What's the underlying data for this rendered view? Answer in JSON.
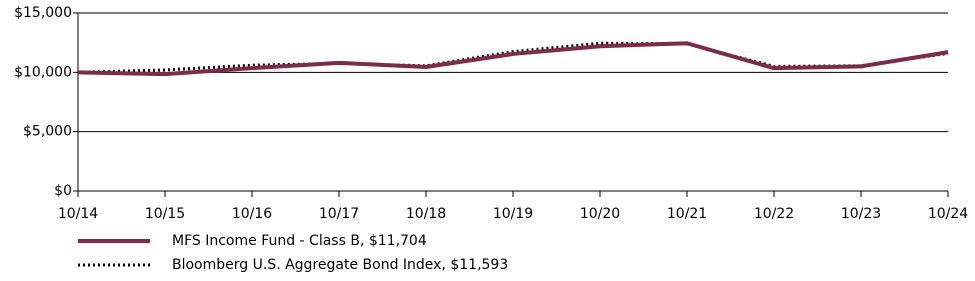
{
  "chart_data": {
    "type": "line",
    "categories": [
      "10/14",
      "10/15",
      "10/16",
      "10/17",
      "10/18",
      "10/19",
      "10/20",
      "10/21",
      "10/22",
      "10/23",
      "10/24"
    ],
    "series": [
      {
        "name": "MFS Income Fund - Class B, $11,704",
        "color": "#7d2c48",
        "style": "solid",
        "values": [
          10000,
          9850,
          10350,
          10800,
          10450,
          11550,
          12200,
          12450,
          10350,
          10500,
          11704
        ]
      },
      {
        "name": "Bloomberg U.S. Aggregate Bond Index, $11,593",
        "color": "#000000",
        "style": "dotted",
        "values": [
          10000,
          10200,
          10600,
          10750,
          10550,
          11750,
          12450,
          12400,
          10500,
          10550,
          11593
        ]
      }
    ],
    "ylim": [
      0,
      15000
    ],
    "yticks": [
      {
        "value": 0,
        "label": "$0"
      },
      {
        "value": 5000,
        "label": "$5,000"
      },
      {
        "value": 10000,
        "label": "$10,000"
      },
      {
        "value": 15000,
        "label": "$15,000"
      }
    ],
    "grid": true
  }
}
